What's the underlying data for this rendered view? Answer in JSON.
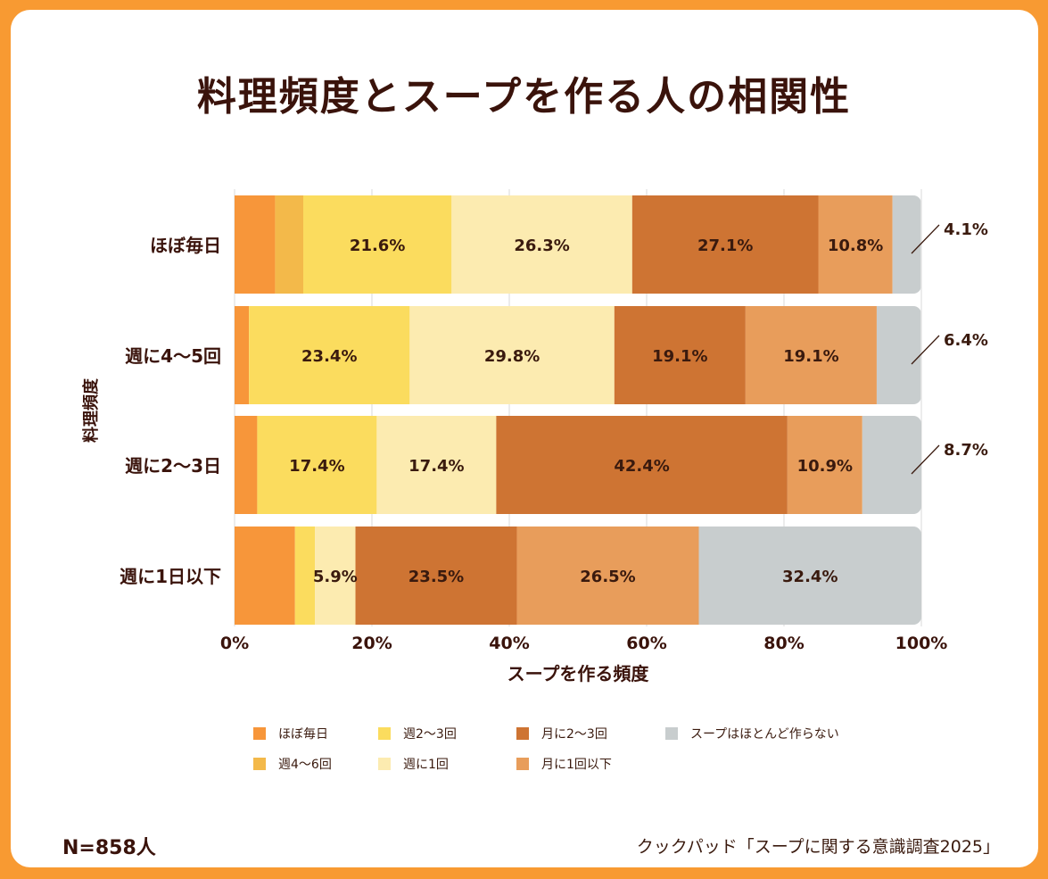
{
  "title": "料理頻度とスープを作る人の相関性",
  "footer": {
    "n_label": "N=858人",
    "source": "クックパッド「スープに関する意識調査2025」"
  },
  "chart_data": {
    "type": "bar",
    "orientation": "horizontal",
    "stacked": true,
    "normalized": true,
    "title": "料理頻度とスープを作る人の相関性",
    "xlabel": "スープを作る頻度",
    "ylabel": "料理頻度",
    "xlim": [
      0,
      100
    ],
    "xticks": [
      "0%",
      "20%",
      "40%",
      "60%",
      "80%",
      "100%"
    ],
    "legend_position": "bottom",
    "categories": [
      "ほぼ毎日",
      "週に4〜5回",
      "週に2〜3日",
      "週に1日以下"
    ],
    "series": [
      {
        "name": "ほぼ毎日",
        "color": "#F7963A",
        "values": [
          5.9,
          2.1,
          3.3,
          8.8
        ],
        "labels": [
          "",
          "",
          "",
          ""
        ]
      },
      {
        "name": "週4〜6回",
        "color": "#F3B94A",
        "values": [
          4.1,
          0.0,
          0.0,
          0.0
        ],
        "labels": [
          "",
          "",
          "",
          ""
        ]
      },
      {
        "name": "週2〜3回",
        "color": "#FBDC5E",
        "values": [
          21.6,
          23.4,
          17.4,
          2.9
        ],
        "labels": [
          "21.6%",
          "23.4%",
          "17.4%",
          ""
        ]
      },
      {
        "name": "週に1回",
        "color": "#FCEBB0",
        "values": [
          26.3,
          29.8,
          17.4,
          5.9
        ],
        "labels": [
          "26.3%",
          "29.8%",
          "17.4%",
          "5.9%"
        ]
      },
      {
        "name": "月に2〜3回",
        "color": "#CE7433",
        "values": [
          27.1,
          19.1,
          42.4,
          23.5
        ],
        "labels": [
          "27.1%",
          "19.1%",
          "42.4%",
          "23.5%"
        ]
      },
      {
        "name": "月に1回以下",
        "color": "#E89D5B",
        "values": [
          10.8,
          19.1,
          10.9,
          26.5
        ],
        "labels": [
          "10.8%",
          "19.1%",
          "10.9%",
          "26.5%"
        ]
      },
      {
        "name": "スープはほとんど作らない",
        "color": "#C8CDCE",
        "values": [
          4.1,
          6.4,
          8.7,
          32.4
        ],
        "labels": [
          "",
          "",
          "",
          "32.4%"
        ]
      }
    ],
    "callouts": [
      "4.1%",
      "6.4%",
      "8.7%",
      ""
    ]
  }
}
